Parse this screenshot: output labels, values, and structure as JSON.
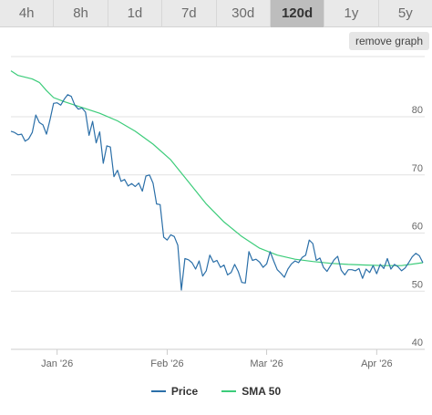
{
  "timeframes": [
    {
      "label": "4h",
      "active": false
    },
    {
      "label": "8h",
      "active": false
    },
    {
      "label": "1d",
      "active": false
    },
    {
      "label": "7d",
      "active": false
    },
    {
      "label": "30d",
      "active": false
    },
    {
      "label": "120d",
      "active": true
    },
    {
      "label": "1y",
      "active": false
    },
    {
      "label": "5y",
      "active": false
    }
  ],
  "remove_graph_label": "remove graph",
  "colors": {
    "price": "#2b6fa8",
    "sma": "#3ccc7a",
    "grid": "#e2e2e2",
    "axis": "#cccccc",
    "tick_text": "#666666"
  },
  "chart_data": {
    "type": "line",
    "title": "",
    "xlabel": "",
    "ylabel": "",
    "ylim": [
      40,
      90
    ],
    "y_ticks": [
      40,
      50,
      60,
      70,
      80
    ],
    "y_tick_labels": [
      "40",
      "50",
      "60",
      "70",
      "80"
    ],
    "x_range": [
      0,
      116
    ],
    "x_ticks": [
      {
        "x": 13,
        "label": "Jan '26"
      },
      {
        "x": 44,
        "label": "Feb '26"
      },
      {
        "x": 72,
        "label": "Mar '26"
      },
      {
        "x": 103,
        "label": "Apr '26"
      }
    ],
    "grid": true,
    "legend_position": "bottom",
    "series": [
      {
        "name": "Price",
        "color": "#2b6fa8",
        "points": [
          [
            0,
            77.5
          ],
          [
            1,
            77.3
          ],
          [
            2,
            76.9
          ],
          [
            3,
            77.0
          ],
          [
            4,
            75.8
          ],
          [
            5,
            76.2
          ],
          [
            6,
            77.3
          ],
          [
            7,
            80.3
          ],
          [
            8,
            79.0
          ],
          [
            9,
            78.6
          ],
          [
            10,
            77.0
          ],
          [
            11,
            79.5
          ],
          [
            12,
            82.3
          ],
          [
            13,
            82.4
          ],
          [
            14,
            82.0
          ],
          [
            15,
            83.0
          ],
          [
            16,
            83.8
          ],
          [
            17,
            83.5
          ],
          [
            18,
            82.0
          ],
          [
            19,
            81.3
          ],
          [
            20,
            81.5
          ],
          [
            21,
            80.8
          ],
          [
            22,
            76.8
          ],
          [
            23,
            79.2
          ],
          [
            24,
            75.5
          ],
          [
            25,
            77.4
          ],
          [
            26,
            72.0
          ],
          [
            27,
            75.0
          ],
          [
            28,
            74.8
          ],
          [
            29,
            69.7
          ],
          [
            30,
            70.8
          ],
          [
            31,
            68.9
          ],
          [
            32,
            69.2
          ],
          [
            33,
            68.1
          ],
          [
            34,
            68.5
          ],
          [
            35,
            68.0
          ],
          [
            36,
            68.6
          ],
          [
            37,
            67.2
          ],
          [
            38,
            69.8
          ],
          [
            39,
            70.0
          ],
          [
            40,
            68.6
          ],
          [
            41,
            65.0
          ],
          [
            42,
            64.9
          ],
          [
            43,
            59.3
          ],
          [
            44,
            58.8
          ],
          [
            45,
            59.7
          ],
          [
            46,
            59.4
          ],
          [
            47,
            57.9
          ],
          [
            48,
            50.2
          ],
          [
            49,
            55.6
          ],
          [
            50,
            55.4
          ],
          [
            51,
            54.9
          ],
          [
            52,
            53.8
          ],
          [
            53,
            55.2
          ],
          [
            54,
            52.6
          ],
          [
            55,
            53.5
          ],
          [
            56,
            56.2
          ],
          [
            57,
            55.0
          ],
          [
            58,
            55.3
          ],
          [
            59,
            54.1
          ],
          [
            60,
            54.5
          ],
          [
            61,
            52.8
          ],
          [
            62,
            53.2
          ],
          [
            63,
            54.6
          ],
          [
            64,
            53.4
          ],
          [
            65,
            51.5
          ],
          [
            66,
            51.4
          ],
          [
            67,
            56.8
          ],
          [
            68,
            55.3
          ],
          [
            69,
            55.5
          ],
          [
            70,
            55.0
          ],
          [
            71,
            54.1
          ],
          [
            72,
            54.7
          ],
          [
            73,
            56.8
          ],
          [
            74,
            55.2
          ],
          [
            75,
            53.7
          ],
          [
            76,
            53.1
          ],
          [
            77,
            52.4
          ],
          [
            78,
            53.8
          ],
          [
            79,
            54.7
          ],
          [
            80,
            55.2
          ],
          [
            81,
            54.9
          ],
          [
            82,
            55.8
          ],
          [
            83,
            56.2
          ],
          [
            84,
            58.8
          ],
          [
            85,
            58.2
          ],
          [
            86,
            55.3
          ],
          [
            87,
            55.7
          ],
          [
            88,
            54.1
          ],
          [
            89,
            53.4
          ],
          [
            90,
            54.4
          ],
          [
            91,
            55.4
          ],
          [
            92,
            56.0
          ],
          [
            93,
            53.6
          ],
          [
            94,
            52.8
          ],
          [
            95,
            53.7
          ],
          [
            96,
            53.7
          ],
          [
            97,
            53.5
          ],
          [
            98,
            53.9
          ],
          [
            99,
            52.2
          ],
          [
            100,
            53.8
          ],
          [
            101,
            53.2
          ],
          [
            102,
            54.4
          ],
          [
            103,
            53.0
          ],
          [
            104,
            54.6
          ],
          [
            105,
            53.9
          ],
          [
            106,
            55.6
          ],
          [
            107,
            53.8
          ],
          [
            108,
            54.6
          ],
          [
            109,
            54.2
          ],
          [
            110,
            53.5
          ],
          [
            111,
            54.0
          ],
          [
            112,
            54.9
          ],
          [
            113,
            55.9
          ],
          [
            114,
            56.5
          ],
          [
            115,
            56.1
          ],
          [
            116,
            54.9
          ]
        ]
      },
      {
        "name": "SMA 50",
        "color": "#3ccc7a",
        "points": [
          [
            0,
            87.9
          ],
          [
            2,
            87.1
          ],
          [
            6,
            86.5
          ],
          [
            8,
            85.9
          ],
          [
            10,
            84.5
          ],
          [
            12,
            83.3
          ],
          [
            15,
            82.6
          ],
          [
            20,
            81.6
          ],
          [
            25,
            80.6
          ],
          [
            30,
            79.3
          ],
          [
            35,
            77.5
          ],
          [
            40,
            75.3
          ],
          [
            45,
            72.6
          ],
          [
            50,
            68.8
          ],
          [
            55,
            65.0
          ],
          [
            60,
            61.9
          ],
          [
            65,
            59.4
          ],
          [
            70,
            57.4
          ],
          [
            75,
            56.2
          ],
          [
            80,
            55.5
          ],
          [
            85,
            55.1
          ],
          [
            90,
            54.8
          ],
          [
            95,
            54.6
          ],
          [
            100,
            54.5
          ],
          [
            105,
            54.4
          ],
          [
            110,
            54.4
          ],
          [
            116,
            54.9
          ]
        ]
      }
    ]
  }
}
